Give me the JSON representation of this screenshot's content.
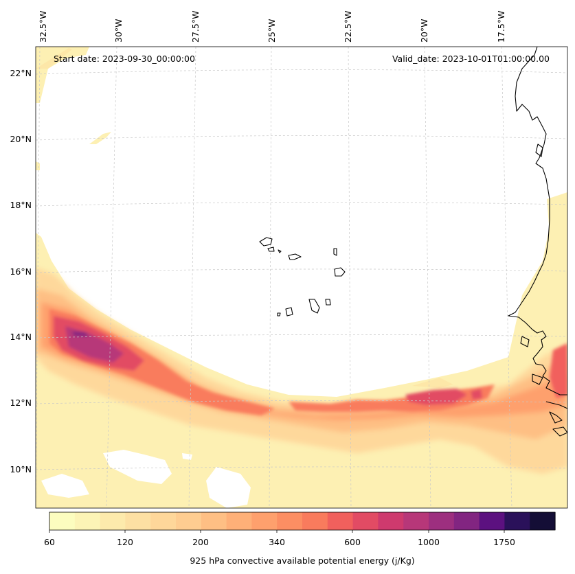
{
  "map": {
    "start_date": "Start date: 2023-09-30_00:00:00",
    "valid_date": "Valid_date: 2023-10-01T01:00:00.00",
    "lon_labels": [
      "32.5°W",
      "30°W",
      "27.5°W",
      "25°W",
      "22.5°W",
      "20°W",
      "17.5°W"
    ],
    "lat_labels": [
      "22°N",
      "20°N",
      "18°N",
      "16°N",
      "14°N",
      "12°N",
      "10°N"
    ]
  },
  "colorbar": {
    "label": "925 hPa convective available potential energy (j/Kg)",
    "ticks": [
      "60",
      "120",
      "200",
      "340",
      "600",
      "1000",
      "1750"
    ],
    "levels": 20,
    "colors": [
      "#fcfdbf",
      "#fcf4b6",
      "#fdeaac",
      "#fde0a3",
      "#fed79a",
      "#fecd91",
      "#febf84",
      "#feb078",
      "#fea06d",
      "#fc8e63",
      "#f97b5d",
      "#f1605d",
      "#e24b64",
      "#ce3a6e",
      "#b73779",
      "#9d2f7f",
      "#822581",
      "#5c1180",
      "#2a115a",
      "#140e36"
    ]
  }
}
